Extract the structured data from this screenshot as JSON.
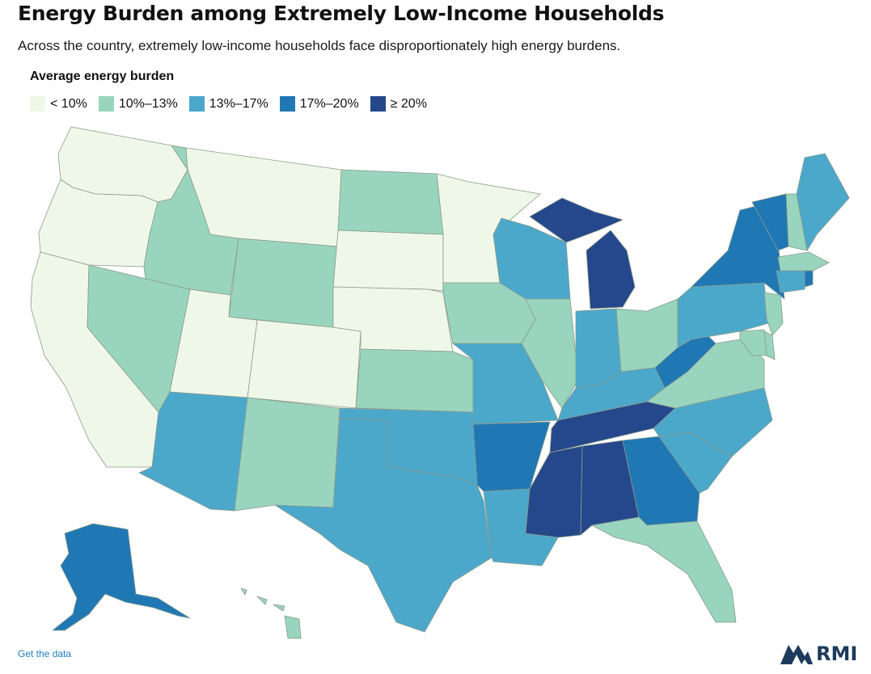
{
  "title": "Energy Burden among Extremely Low-Income Households",
  "subtitle": "Across the country, extremely low-income households face disproportionately high energy burdens.",
  "legend": {
    "title": "Average energy burden",
    "items": [
      {
        "label": "< 10%",
        "color": "#eff8e8"
      },
      {
        "label": "10%–13%",
        "color": "#99d5be"
      },
      {
        "label": "13%–17%",
        "color": "#4ba8cb"
      },
      {
        "label": "17%–20%",
        "color": "#1f78b4"
      },
      {
        "label": "≥ 20%",
        "color": "#24488b"
      }
    ]
  },
  "states": {
    "WA": 0,
    "OR": 0,
    "CA": 0,
    "NV": 1,
    "ID": 1,
    "MT": 0,
    "WY": 1,
    "UT": 0,
    "CO": 0,
    "AZ": 2,
    "NM": 1,
    "ND": 1,
    "SD": 0,
    "NE": 0,
    "KS": 1,
    "OK": 2,
    "TX": 2,
    "MN": 0,
    "IA": 1,
    "MO": 2,
    "AR": 3,
    "LA": 2,
    "WI": 2,
    "IL": 1,
    "MI": 4,
    "IN": 2,
    "OH": 1,
    "KY": 2,
    "TN": 4,
    "MS": 4,
    "AL": 4,
    "GA": 3,
    "FL": 1,
    "SC": 2,
    "NC": 2,
    "VA": 1,
    "WV": 3,
    "PA": 2,
    "NY": 3,
    "VT": 3,
    "NH": 1,
    "ME": 2,
    "MA": 1,
    "CT": 2,
    "RI": 3,
    "NJ": 1,
    "DE": 1,
    "MD": 1,
    "AK": 3,
    "HI": 1
  },
  "footer": {
    "link": "Get the data",
    "logo_text": "RMI"
  }
}
